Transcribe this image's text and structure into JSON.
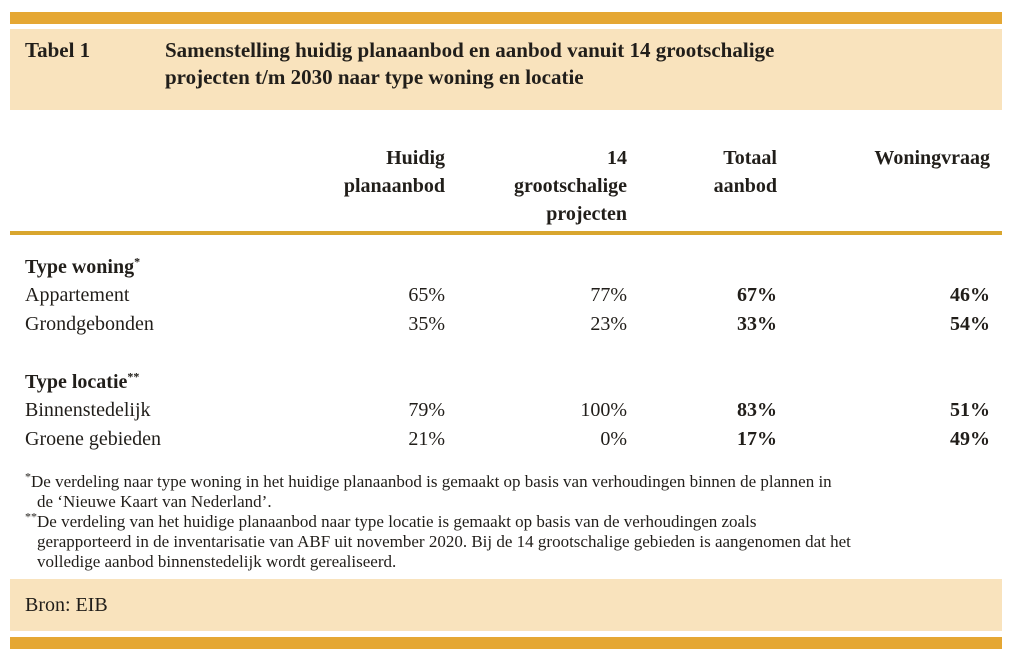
{
  "table": {
    "tag": "Tabel 1",
    "title": "Samenstelling huidig planaanbod en aanbod vanuit 14 grootschalige\nprojecten t/m 2030 naar type woning en locatie",
    "columns": [
      "Huidig\nplanaanbod",
      "14\ngrootschalige\nprojecten",
      "Totaal\naanbod",
      "Woningvraag"
    ],
    "sections": [
      {
        "heading": "Type woning",
        "marker": "*",
        "rows": [
          {
            "label": "Appartement",
            "values": [
              "65%",
              "77%",
              "67%",
              "46%"
            ]
          },
          {
            "label": "Grondgebonden",
            "values": [
              "35%",
              "23%",
              "33%",
              "54%"
            ]
          }
        ]
      },
      {
        "heading": "Type locatie",
        "marker": "**",
        "rows": [
          {
            "label": "Binnenstedelijk",
            "values": [
              "79%",
              "100%",
              "83%",
              "51%"
            ]
          },
          {
            "label": "Groene gebieden",
            "values": [
              "21%",
              "0%",
              "17%",
              "49%"
            ]
          }
        ]
      }
    ],
    "footnotes": [
      {
        "marker": "*",
        "text": "De verdeling naar type woning in het huidige planaanbod is gemaakt op basis van verhoudingen binnen de plannen in\nde ‘Nieuwe Kaart van Nederland’."
      },
      {
        "marker": "**",
        "text": "De verdeling van het huidige planaanbod naar type locatie is gemaakt op basis van de verhoudingen zoals\ngerapporteerd in de inventarisatie van ABF uit november 2020. Bij de 14 grootschalige gebieden is aangenomen dat het\nvolledige aanbod binnenstedelijk wordt gerealiseerd."
      }
    ],
    "source": "Bron: EIB"
  },
  "colors": {
    "accent_bar": "#E5A733",
    "band_background": "#F9E3BD",
    "header_rule": "#D9A62E"
  }
}
